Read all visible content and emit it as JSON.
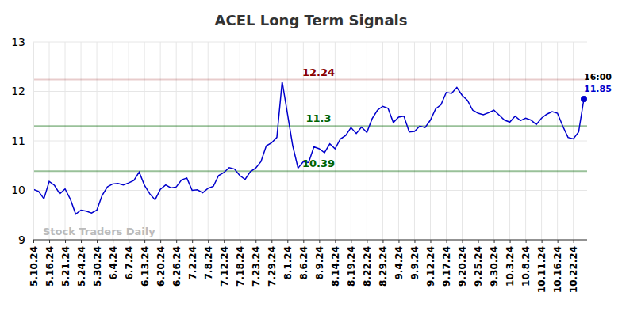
{
  "chart_data": {
    "type": "line",
    "title": "ACEL Long Term Signals",
    "watermark": "Stock Traders Daily",
    "end_label": "16:00",
    "color": "#0000cc",
    "grid": true,
    "marker": "circle",
    "ylim": [
      9,
      13
    ],
    "yticks": [
      9,
      10,
      11,
      12,
      13
    ],
    "annotations": [
      {
        "value": 12.24,
        "color": "#8b0000"
      },
      {
        "value": 11.3,
        "color": "#006400"
      },
      {
        "value": 10.39,
        "color": "#006400"
      }
    ],
    "categories": [
      "5.10.24",
      null,
      null,
      "5.16.24",
      null,
      null,
      "5.21.24",
      null,
      null,
      "5.24.24",
      null,
      null,
      "5.30.24",
      null,
      null,
      "6.4.24",
      null,
      null,
      "6.7.24",
      null,
      null,
      "6.13.24",
      null,
      null,
      "6.20.24",
      null,
      null,
      "6.26.24",
      null,
      null,
      "7.2.24",
      null,
      null,
      "7.8.24",
      null,
      null,
      "7.12.24",
      null,
      null,
      "7.18.24",
      null,
      null,
      "7.23.24",
      null,
      null,
      "7.29.24",
      null,
      null,
      "8.1.24",
      null,
      null,
      "8.6.24",
      null,
      null,
      "8.9.24",
      null,
      null,
      "8.14.24",
      null,
      null,
      "8.19.24",
      null,
      null,
      "8.22.24",
      null,
      null,
      "8.29.24",
      null,
      null,
      "9.4.24",
      null,
      null,
      "9.9.24",
      null,
      null,
      "9.12.24",
      null,
      null,
      "9.17.24",
      null,
      null,
      "9.20.24",
      null,
      null,
      "9.25.24",
      null,
      null,
      "9.30.24",
      null,
      null,
      "10.3.24",
      null,
      null,
      "10.8.24",
      null,
      null,
      "10.11.24",
      null,
      null,
      "10.16.24",
      null,
      null,
      "10.22.24",
      null,
      null
    ],
    "values": [
      10.02,
      9.98,
      9.83,
      10.18,
      10.1,
      9.93,
      10.03,
      9.82,
      9.52,
      9.6,
      9.58,
      9.54,
      9.6,
      9.9,
      10.07,
      10.13,
      10.14,
      10.11,
      10.15,
      10.2,
      10.37,
      10.1,
      9.93,
      9.81,
      10.02,
      10.11,
      10.05,
      10.07,
      10.21,
      10.25,
      10.0,
      10.01,
      9.95,
      10.04,
      10.08,
      10.3,
      10.36,
      10.46,
      10.43,
      10.3,
      10.22,
      10.38,
      10.45,
      10.58,
      10.9,
      10.96,
      11.07,
      12.2,
      11.55,
      10.9,
      10.45,
      10.58,
      10.56,
      10.88,
      10.84,
      10.76,
      10.94,
      10.84,
      11.04,
      11.11,
      11.27,
      11.15,
      11.28,
      11.17,
      11.45,
      11.62,
      11.7,
      11.66,
      11.37,
      11.48,
      11.5,
      11.18,
      11.19,
      11.3,
      11.27,
      11.42,
      11.65,
      11.73,
      11.98,
      11.96,
      12.08,
      11.92,
      11.82,
      11.62,
      11.56,
      11.53,
      11.57,
      11.62,
      11.52,
      11.42,
      11.38,
      11.5,
      11.41,
      11.46,
      11.42,
      11.33,
      11.46,
      11.54,
      11.59,
      11.56,
      11.3,
      11.07,
      11.04,
      11.18,
      11.85
    ]
  }
}
